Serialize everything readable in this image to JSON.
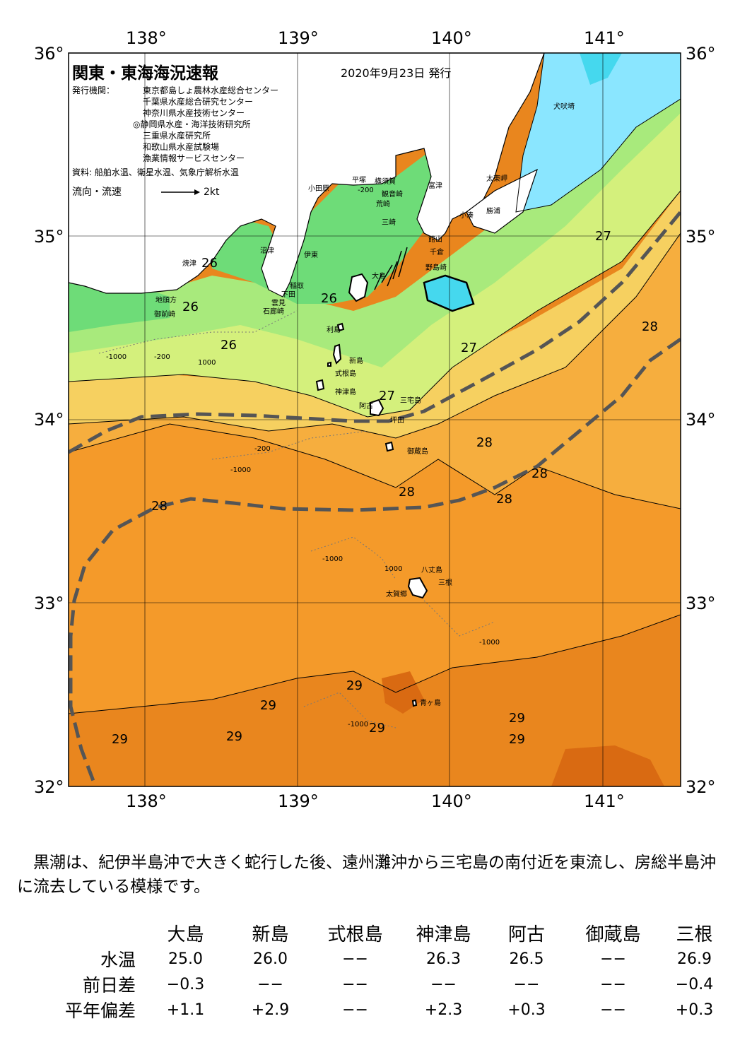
{
  "header": {
    "title": "関東・東海海況速報",
    "issue_date": "2020年9月23日 発行",
    "issuers_label": "発行機関：",
    "issuers": [
      "東京都島しょ農林水産総合センター",
      "千葉県水産総合研究センター",
      "神奈川県水産技術センター",
      "◎静岡県水産・海洋技術研究所",
      "三重県水産研究所",
      "和歌山県水産試験場",
      "漁業情報サービスセンター"
    ],
    "source": "資料: 船舶水温、衛星水温、気象庁解析水温",
    "flow_label": "流向・流速",
    "flow_scale": "2kt"
  },
  "axes": {
    "longitudes": [
      "138°",
      "139°",
      "140°",
      "141°"
    ],
    "latitudes": [
      "36°",
      "35°",
      "34°",
      "33°",
      "32°"
    ]
  },
  "map": {
    "land_color": "#ffffff",
    "kuroshio_color": "#555555",
    "temperature_colors": {
      "24": "#45d8ee",
      "25": "#8ae6ff",
      "26": "#6edc78",
      "26.5": "#a8ea7c",
      "27": "#d4f07c",
      "27.5": "#f6d060",
      "28": "#f6ae3e",
      "28.5": "#f49a2a",
      "29": "#e9861e",
      "29.5": "#d96a12"
    },
    "place_names": [
      "犬吠埼",
      "太東岬",
      "勝浦",
      "小湊",
      "富津",
      "平塚",
      "横須賀",
      "観音崎",
      "小田原",
      "荒崎",
      "三崎",
      "館山",
      "千倉",
      "野島崎",
      "沼津",
      "伊東",
      "焼津",
      "稲取",
      "下田",
      "雲見",
      "石廊崎",
      "地頭方",
      "御前崎",
      "大島",
      "利島",
      "新島",
      "式根島",
      "神津島",
      "三宅島",
      "阿古",
      "坪田",
      "御蔵島",
      "八丈島",
      "三根",
      "太賀郷",
      "青ヶ島"
    ],
    "depth_labels": [
      "-200",
      "-1000",
      "1000",
      "-200",
      "-1000",
      "1000",
      "-200",
      "-1000",
      "-1000",
      "-1000"
    ],
    "isotherm_labels": [
      "26",
      "26",
      "26",
      "26",
      "27",
      "27",
      "27",
      "28",
      "28",
      "28",
      "28",
      "28",
      "28",
      "29",
      "29",
      "29",
      "29",
      "29",
      "29",
      "29"
    ]
  },
  "description": "黒潮は、紀伊半島沖で大きく蛇行した後、遠州灘沖から三宅島の南付近を東流し、房総半島沖に流去している模様です。",
  "observations": {
    "stations": [
      "大島",
      "新島",
      "式根島",
      "神津島",
      "阿古",
      "御蔵島",
      "三根"
    ],
    "rows": [
      {
        "label": "水温",
        "values": [
          "25.0",
          "26.0",
          "−−",
          "26.3",
          "26.5",
          "−−",
          "26.9"
        ]
      },
      {
        "label": "前日差",
        "values": [
          "−0.3",
          "−−",
          "−−",
          "−−",
          "−−",
          "−−",
          "−0.4"
        ]
      },
      {
        "label": "平年偏差",
        "values": [
          "+1.1",
          "+2.9",
          "−−",
          "+2.3",
          "+0.3",
          "−−",
          "+0.3"
        ]
      }
    ]
  }
}
